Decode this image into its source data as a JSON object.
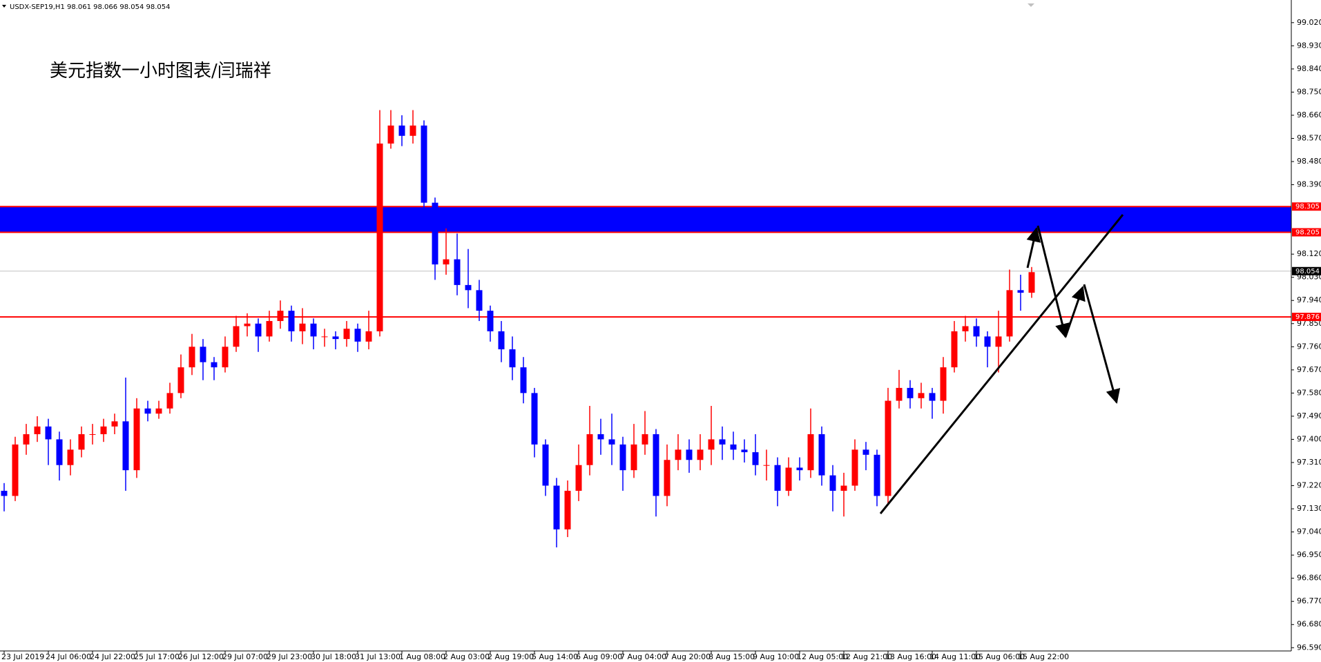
{
  "header": "USDX-SEP19,H1  98.061 98.066 98.054 98.054",
  "chart_data": {
    "type": "candlestick",
    "title": "美元指数一小时图表/闫瑞祥",
    "categories": [
      "23 Jul 2019",
      null,
      null,
      null,
      "24 Jul 06:00",
      null,
      null,
      null,
      "24 Jul 22:00",
      null,
      null,
      null,
      "25 Jul 17:00",
      null,
      null,
      null,
      "26 Jul 12:00",
      null,
      null,
      null,
      "29 Jul 07:00",
      null,
      null,
      null,
      "29 Jul 23:00",
      null,
      null,
      null,
      "30 Jul 18:00",
      null,
      null,
      null,
      "31 Jul 13:00",
      null,
      null,
      null,
      "1 Aug 08:00",
      null,
      null,
      null,
      "2 Aug 03:00",
      null,
      null,
      null,
      "2 Aug 19:00",
      null,
      null,
      null,
      "5 Aug 14:00",
      null,
      null,
      null,
      "6 Aug 09:00",
      null,
      null,
      null,
      "7 Aug 04:00",
      null,
      null,
      null,
      "7 Aug 20:00",
      null,
      null,
      null,
      "8 Aug 15:00",
      null,
      null,
      null,
      "9 Aug 10:00",
      null,
      null,
      null,
      "12 Aug 05:00",
      null,
      null,
      null,
      "12 Aug 21:00",
      null,
      null,
      null,
      "13 Aug 16:00",
      null,
      null,
      null,
      "14 Aug 11:00",
      null,
      null,
      null,
      "15 Aug 06:00",
      null,
      null,
      null,
      "15 Aug 22:00",
      null
    ],
    "open": [
      97.2,
      97.18,
      97.38,
      97.42,
      97.45,
      97.4,
      97.3,
      97.36,
      97.42,
      97.42,
      97.45,
      97.47,
      97.28,
      97.52,
      97.5,
      97.52,
      97.58,
      97.68,
      97.76,
      97.7,
      97.68,
      97.76,
      97.84,
      97.85,
      97.8,
      97.86,
      97.9,
      97.82,
      97.85,
      97.8,
      97.8,
      97.79,
      97.83,
      97.78,
      97.82,
      98.55,
      98.62,
      98.58,
      98.62,
      98.32,
      98.08,
      98.1,
      98.0,
      97.98,
      97.9,
      97.82,
      97.75,
      97.68,
      97.58,
      97.38,
      97.22,
      97.05,
      97.2,
      97.3,
      97.42,
      97.4,
      97.38,
      97.28,
      97.38,
      97.42,
      97.18,
      97.32,
      97.36,
      97.32,
      97.36,
      97.4,
      97.38,
      97.36,
      97.35,
      97.3,
      97.3,
      97.2,
      97.29,
      97.28,
      97.42,
      97.26,
      97.2,
      97.22,
      97.36,
      97.34,
      97.18,
      97.55,
      97.6,
      97.56,
      97.58,
      97.55,
      97.68,
      97.82,
      97.84,
      97.8,
      97.76,
      97.8,
      97.98,
      97.97
    ],
    "high": [
      97.23,
      97.41,
      97.46,
      97.49,
      97.48,
      97.43,
      97.4,
      97.45,
      97.46,
      97.48,
      97.5,
      97.64,
      97.56,
      97.55,
      97.55,
      97.62,
      97.73,
      97.81,
      97.79,
      97.72,
      97.8,
      97.88,
      97.89,
      97.87,
      97.9,
      97.94,
      97.92,
      97.91,
      97.87,
      97.83,
      97.82,
      97.86,
      97.85,
      97.9,
      98.68,
      98.68,
      98.66,
      98.68,
      98.64,
      98.34,
      98.22,
      98.2,
      98.14,
      98.02,
      97.92,
      97.86,
      97.8,
      97.72,
      97.6,
      97.4,
      97.25,
      97.24,
      97.38,
      97.53,
      97.48,
      97.5,
      97.41,
      97.46,
      97.51,
      97.44,
      97.38,
      97.42,
      97.4,
      97.42,
      97.53,
      97.45,
      97.43,
      97.4,
      97.42,
      97.36,
      97.33,
      97.33,
      97.33,
      97.52,
      97.45,
      97.3,
      97.27,
      97.4,
      97.39,
      97.36,
      97.6,
      97.67,
      97.63,
      97.62,
      97.6,
      97.72,
      97.86,
      97.88,
      97.87,
      97.82,
      97.9,
      98.06,
      98.04,
      98.07
    ],
    "low": [
      97.12,
      97.16,
      97.34,
      97.39,
      97.3,
      97.24,
      97.26,
      97.33,
      97.38,
      97.39,
      97.42,
      97.2,
      97.25,
      97.47,
      97.48,
      97.5,
      97.56,
      97.65,
      97.63,
      97.63,
      97.66,
      97.74,
      97.8,
      97.74,
      97.78,
      97.83,
      97.78,
      97.77,
      97.75,
      97.76,
      97.75,
      97.76,
      97.74,
      97.75,
      97.8,
      98.53,
      98.54,
      98.55,
      98.28,
      98.02,
      98.04,
      97.96,
      97.91,
      97.86,
      97.78,
      97.7,
      97.63,
      97.54,
      97.33,
      97.18,
      96.98,
      97.02,
      97.16,
      97.26,
      97.34,
      97.3,
      97.2,
      97.25,
      97.34,
      97.1,
      97.14,
      97.28,
      97.27,
      97.28,
      97.3,
      97.32,
      97.32,
      97.31,
      97.26,
      97.24,
      97.14,
      97.18,
      97.24,
      97.25,
      97.22,
      97.12,
      97.1,
      97.2,
      97.28,
      97.14,
      97.15,
      97.52,
      97.52,
      97.52,
      97.48,
      97.5,
      97.66,
      97.78,
      97.76,
      97.68,
      97.66,
      97.78,
      97.9,
      97.95
    ],
    "close": [
      97.18,
      97.38,
      97.42,
      97.45,
      97.4,
      97.3,
      97.36,
      97.42,
      97.42,
      97.45,
      97.47,
      97.28,
      97.52,
      97.5,
      97.52,
      97.58,
      97.68,
      97.76,
      97.7,
      97.68,
      97.76,
      97.84,
      97.85,
      97.8,
      97.86,
      97.9,
      97.82,
      97.85,
      97.8,
      97.8,
      97.79,
      97.83,
      97.78,
      97.82,
      98.55,
      98.62,
      98.58,
      98.62,
      98.32,
      98.08,
      98.1,
      98.0,
      97.98,
      97.9,
      97.82,
      97.75,
      97.68,
      97.58,
      97.38,
      97.22,
      97.05,
      97.2,
      97.3,
      97.42,
      97.4,
      97.38,
      97.28,
      97.38,
      97.42,
      97.18,
      97.32,
      97.36,
      97.32,
      97.36,
      97.4,
      97.38,
      97.36,
      97.35,
      97.3,
      97.3,
      97.2,
      97.29,
      97.28,
      97.42,
      97.26,
      97.2,
      97.22,
      97.36,
      97.34,
      97.18,
      97.55,
      97.6,
      97.56,
      97.58,
      97.55,
      97.68,
      97.82,
      97.84,
      97.8,
      97.76,
      97.8,
      97.98,
      97.97,
      98.05
    ],
    "up_color": "#ff0000",
    "down_color": "#0000ff",
    "ylim": [
      96.58,
      99.1
    ],
    "yticks": [
      {
        "value": 96.59,
        "label": "96.590"
      },
      {
        "value": 96.68,
        "label": "96.680"
      },
      {
        "value": 96.77,
        "label": "96.770"
      },
      {
        "value": 96.86,
        "label": "96.860"
      },
      {
        "value": 96.95,
        "label": "96.950"
      },
      {
        "value": 97.04,
        "label": "97.040"
      },
      {
        "value": 97.13,
        "label": "97.130"
      },
      {
        "value": 97.22,
        "label": "97.220"
      },
      {
        "value": 97.31,
        "label": "97.310"
      },
      {
        "value": 97.4,
        "label": "97.400"
      },
      {
        "value": 97.49,
        "label": "97.490"
      },
      {
        "value": 97.58,
        "label": "97.580"
      },
      {
        "value": 97.67,
        "label": "97.670"
      },
      {
        "value": 97.76,
        "label": "97.760"
      },
      {
        "value": 97.85,
        "label": "97.850"
      },
      {
        "value": 97.94,
        "label": "97.940"
      },
      {
        "value": 98.03,
        "label": "98.030"
      },
      {
        "value": 98.12,
        "label": "98.120"
      },
      {
        "value": 98.39,
        "label": "98.390"
      },
      {
        "value": 98.48,
        "label": "98.480"
      },
      {
        "value": 98.57,
        "label": "98.570"
      },
      {
        "value": 98.66,
        "label": "98.660"
      },
      {
        "value": 98.75,
        "label": "98.750"
      },
      {
        "value": 98.84,
        "label": "98.840"
      },
      {
        "value": 98.93,
        "label": "98.930"
      },
      {
        "value": 99.02,
        "label": "99.020"
      }
    ],
    "zone": {
      "range": [
        98.205,
        98.305
      ],
      "color": "#0000ff",
      "border_color": "#ff0000"
    },
    "levels": [
      {
        "value": 97.876,
        "color": "#ff0000"
      },
      {
        "value": 98.054,
        "color": "#c0c0c0",
        "label_color": "#000000"
      }
    ]
  }
}
